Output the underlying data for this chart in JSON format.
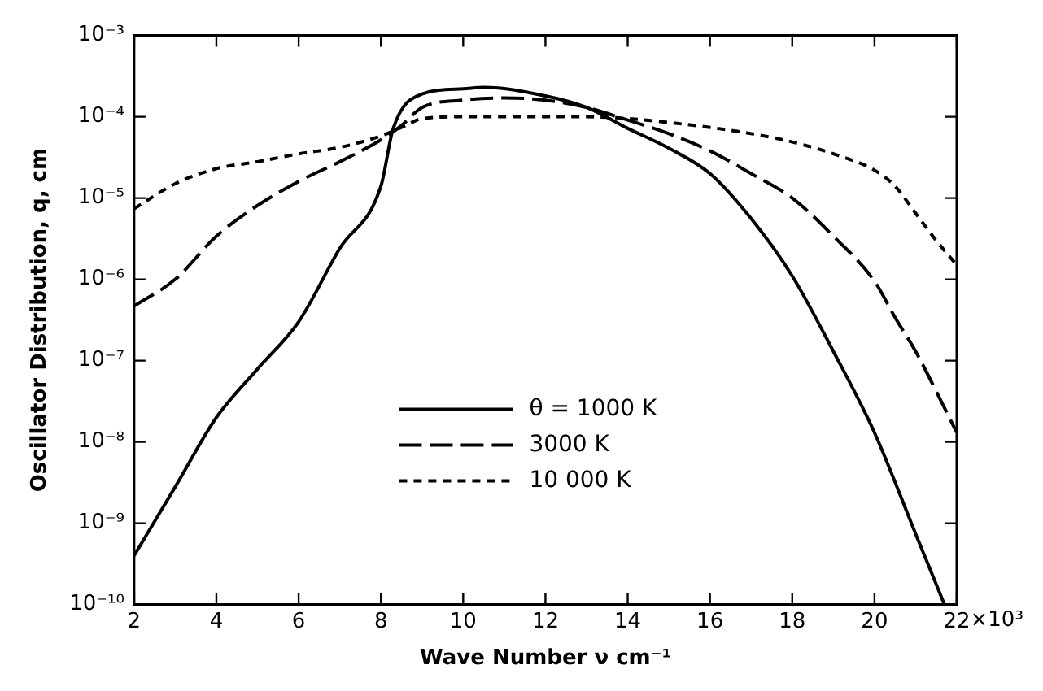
{
  "chart_data": {
    "type": "line",
    "xlabel": "Wave Number ν cm⁻¹",
    "ylabel": "Oscillator Distribution, q, cm",
    "log": "y",
    "xlim": [
      2,
      22
    ],
    "xticks": [
      2,
      4,
      6,
      8,
      10,
      12,
      14,
      16,
      18,
      20,
      22
    ],
    "annotations": [
      "×10³"
    ],
    "ylim": [
      1e-10,
      0.001
    ],
    "yticks": [
      {
        "value": 0.001,
        "label": "10⁻³"
      },
      {
        "value": 0.0001,
        "label": "10⁻⁴"
      },
      {
        "value": 1e-05,
        "label": "10⁻⁵"
      },
      {
        "value": 1e-06,
        "label": "10⁻⁶"
      },
      {
        "value": 1e-07,
        "label": "10⁻⁷"
      },
      {
        "value": 1e-08,
        "label": "10⁻⁸"
      },
      {
        "value": 1e-09,
        "label": "10⁻⁹"
      },
      {
        "value": 1e-10,
        "label": "10⁻¹⁰"
      }
    ],
    "grid": false,
    "legend": "bottom",
    "marker": "none",
    "series": [
      {
        "name": "θ = 1000 K",
        "color": "#000000",
        "line_style": "solid",
        "x": [
          2,
          3,
          4,
          5,
          6,
          7,
          8,
          8.3,
          9,
          10,
          10.5,
          12,
          13,
          14,
          15,
          16,
          17,
          18,
          19,
          20,
          21,
          21.7
        ],
        "values": [
          4e-10,
          2.8e-09,
          2e-08,
          7.9e-08,
          3e-07,
          2.4e-06,
          1.4e-05,
          7.2e-05,
          0.00019,
          0.00022,
          0.00023,
          0.00018,
          0.00013,
          7.2e-05,
          4.1e-05,
          2e-05,
          5.6e-06,
          1.1e-06,
          1.3e-07,
          1.3e-08,
          7.4e-10,
          1e-10
        ]
      },
      {
        "name": "3000 K",
        "color": "#000000",
        "line_style": "dashed",
        "x": [
          2,
          3,
          4,
          5,
          6,
          7,
          8,
          8.5,
          9,
          10,
          11,
          12,
          13,
          14,
          15,
          16,
          17,
          18,
          19,
          20,
          20.5,
          21,
          21.5,
          22
        ],
        "values": [
          4.7e-07,
          1e-06,
          3.4e-06,
          8.1e-06,
          1.6e-05,
          2.8e-05,
          5.2e-05,
          7.8e-05,
          0.00013,
          0.00016,
          0.00017,
          0.00016,
          0.00013,
          9.1e-05,
          6.2e-05,
          3.8e-05,
          2e-05,
          1e-05,
          3.4e-06,
          9.5e-07,
          3.4e-07,
          1.3e-07,
          4.2e-08,
          1.3e-08
        ]
      },
      {
        "name": "10 000 K",
        "color": "#000000",
        "line_style": "dotted",
        "x": [
          2,
          3,
          4,
          5,
          6,
          7,
          8,
          8.6,
          9,
          10,
          11,
          12,
          13,
          14,
          15,
          16,
          17,
          18,
          19,
          20,
          20.5,
          21,
          21.5,
          22
        ],
        "values": [
          7.4e-06,
          1.5e-05,
          2.3e-05,
          2.8e-05,
          3.5e-05,
          4.2e-05,
          5.8e-05,
          7.8e-05,
          9.5e-05,
          0.0001,
          0.0001,
          0.0001,
          0.0001,
          9.5e-05,
          8.5e-05,
          7.4e-05,
          6.2e-05,
          4.9e-05,
          3.5e-05,
          2.2e-05,
          1.4e-05,
          6.5e-06,
          3e-06,
          1.5e-06
        ]
      }
    ]
  }
}
